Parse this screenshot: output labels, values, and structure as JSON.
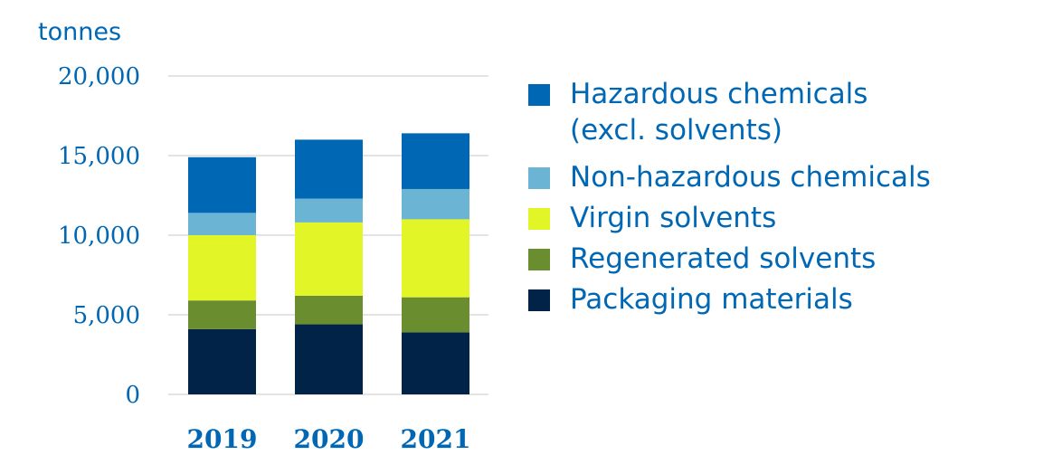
{
  "chart_data": {
    "type": "bar",
    "stacked": true,
    "ylabel": "tonnes",
    "ylim": [
      0,
      20000
    ],
    "yticks": [
      {
        "value": 0,
        "label": "0"
      },
      {
        "value": 5000,
        "label": "5,000"
      },
      {
        "value": 10000,
        "label": "10,000"
      },
      {
        "value": 15000,
        "label": "15,000"
      },
      {
        "value": 20000,
        "label": "20,000"
      }
    ],
    "categories": [
      "2019",
      "2020",
      "2021"
    ],
    "grid": true,
    "legend_position": "right",
    "series": [
      {
        "name": "Packaging materials",
        "color": "#002347",
        "values": [
          4100,
          4400,
          3900
        ]
      },
      {
        "name": "Regenerated solvents",
        "color": "#6a8e2f",
        "values": [
          1800,
          1800,
          2200
        ]
      },
      {
        "name": "Virgin solvents",
        "color": "#e2f627",
        "values": [
          4100,
          4600,
          4900
        ]
      },
      {
        "name": "Non-hazardous chemicals",
        "color": "#6cb4d4",
        "values": [
          1400,
          1500,
          1900
        ]
      },
      {
        "name": "Hazardous chemicals\n(excl. solvents)",
        "color": "#0067b4",
        "values": [
          3500,
          3700,
          3500
        ]
      }
    ]
  }
}
